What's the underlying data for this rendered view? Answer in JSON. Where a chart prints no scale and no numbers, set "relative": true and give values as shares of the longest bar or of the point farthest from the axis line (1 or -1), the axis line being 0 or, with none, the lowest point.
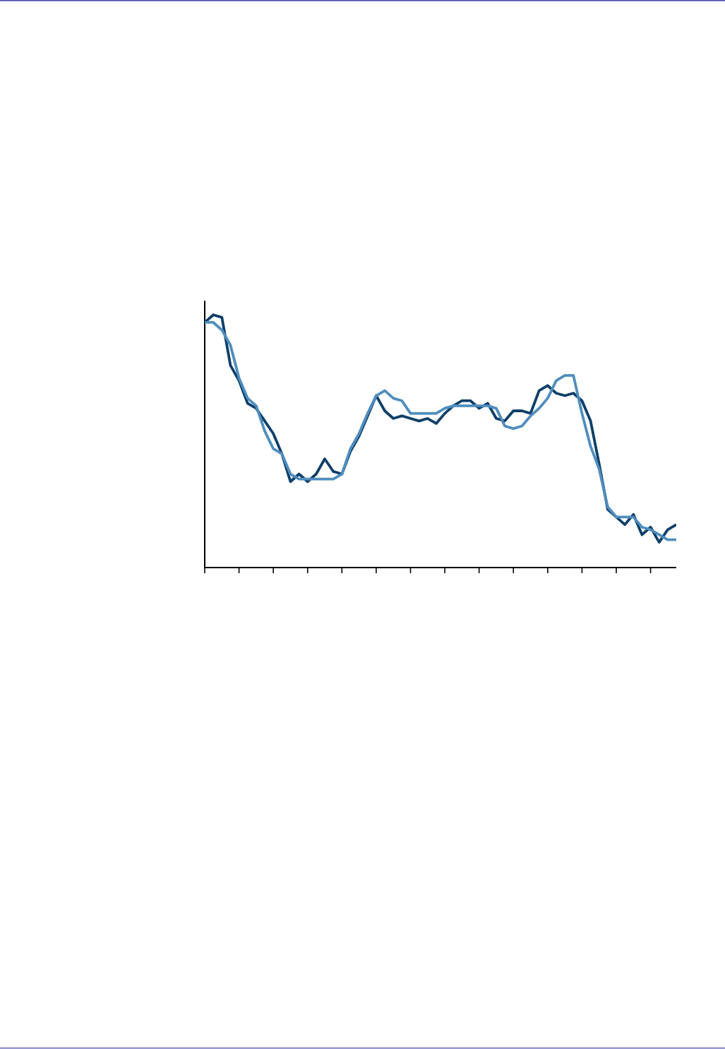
{
  "chart_data": {
    "type": "line",
    "relative": true,
    "categories": [
      null,
      null,
      null,
      null,
      null,
      null,
      null,
      null,
      null,
      null,
      null,
      null,
      null,
      null,
      null,
      null,
      null,
      null,
      null,
      null,
      null,
      null,
      null,
      null,
      null,
      null,
      null,
      null,
      null,
      null,
      null,
      null,
      null,
      null,
      null,
      null,
      null,
      null,
      null,
      null,
      null,
      null,
      null,
      null,
      null,
      null,
      null,
      null,
      null,
      null,
      null,
      null,
      null,
      null,
      null,
      null
    ],
    "series": [
      {
        "color": "#0e3f68",
        "values": [
          0.97,
          1,
          0.99,
          0.8,
          0.74,
          0.65,
          0.63,
          0.58,
          0.53,
          0.45,
          0.34,
          0.37,
          0.34,
          0.37,
          0.43,
          0.38,
          0.37,
          0.46,
          0.52,
          0.6,
          0.68,
          0.62,
          0.59,
          0.6,
          0.59,
          0.58,
          0.59,
          0.57,
          0.61,
          0.64,
          0.66,
          0.66,
          0.63,
          0.65,
          0.59,
          0.58,
          0.62,
          0.62,
          0.61,
          0.7,
          0.72,
          0.69,
          0.68,
          0.69,
          0.66,
          0.58,
          0.41,
          0.23,
          0.2,
          0.17,
          0.21,
          0.13,
          0.16,
          0.1,
          0.15,
          0.17
        ]
      },
      {
        "color": "#4f8dbd",
        "values": [
          0.97,
          0.97,
          0.94,
          0.88,
          0.75,
          0.67,
          0.64,
          0.54,
          0.47,
          0.45,
          0.37,
          0.35,
          0.35,
          0.35,
          0.35,
          0.35,
          0.37,
          0.47,
          0.53,
          0.61,
          0.68,
          0.7,
          0.67,
          0.66,
          0.61,
          0.61,
          0.61,
          0.61,
          0.63,
          0.64,
          0.64,
          0.64,
          0.64,
          0.64,
          0.63,
          0.56,
          0.55,
          0.56,
          0.6,
          0.63,
          0.67,
          0.74,
          0.76,
          0.76,
          0.61,
          0.48,
          0.39,
          0.24,
          0.2,
          0.2,
          0.2,
          0.16,
          0.15,
          0.13,
          0.11,
          0.11
        ]
      }
    ],
    "marker": "none",
    "line_style": "solid"
  }
}
